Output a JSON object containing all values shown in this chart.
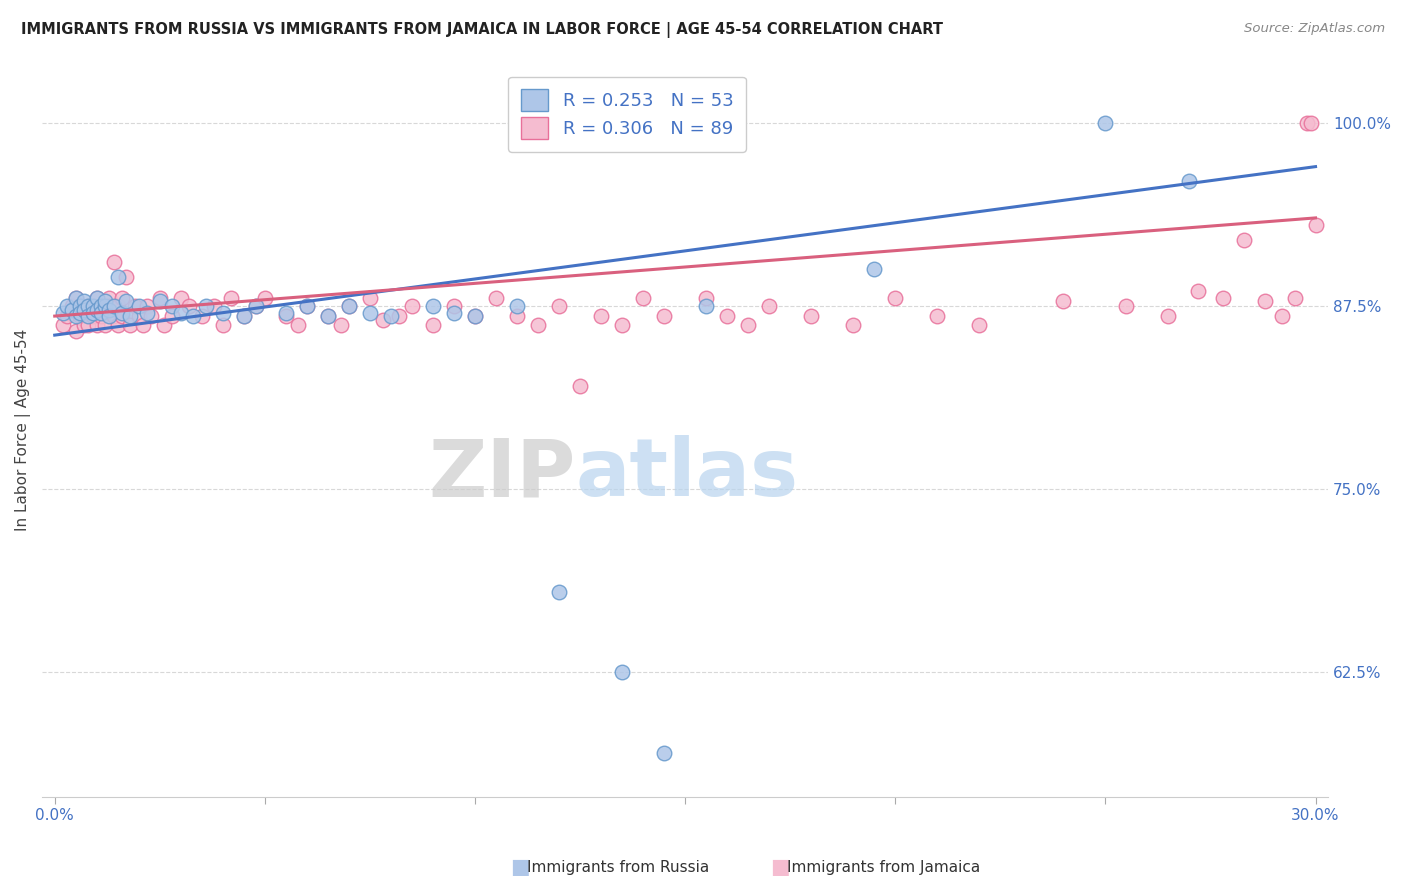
{
  "title": "IMMIGRANTS FROM RUSSIA VS IMMIGRANTS FROM JAMAICA IN LABOR FORCE | AGE 45-54 CORRELATION CHART",
  "source": "Source: ZipAtlas.com",
  "ylabel": "In Labor Force | Age 45-54",
  "russia_color": "#aec6e8",
  "russia_edge": "#6699cc",
  "jamaica_color": "#f5bcd0",
  "jamaica_edge": "#e8709a",
  "russia_R": 0.253,
  "russia_N": 53,
  "jamaica_R": 0.306,
  "jamaica_N": 89,
  "tick_color": "#4472c4",
  "grid_color": "#d8d8d8",
  "russia_line_color": "#4472c4",
  "jamaica_line_color": "#d9607e",
  "russia_x": [
    0.002,
    0.003,
    0.004,
    0.005,
    0.005,
    0.006,
    0.006,
    0.007,
    0.007,
    0.008,
    0.008,
    0.009,
    0.009,
    0.01,
    0.01,
    0.011,
    0.011,
    0.012,
    0.012,
    0.013,
    0.013,
    0.014,
    0.015,
    0.016,
    0.017,
    0.018,
    0.02,
    0.022,
    0.025,
    0.028,
    0.03,
    0.033,
    0.036,
    0.04,
    0.045,
    0.048,
    0.055,
    0.06,
    0.065,
    0.07,
    0.075,
    0.08,
    0.09,
    0.095,
    0.1,
    0.11,
    0.12,
    0.135,
    0.145,
    0.155,
    0.195,
    0.25,
    0.27
  ],
  "russia_y": [
    0.87,
    0.875,
    0.872,
    0.868,
    0.88,
    0.875,
    0.87,
    0.878,
    0.872,
    0.875,
    0.868,
    0.875,
    0.87,
    0.88,
    0.872,
    0.875,
    0.87,
    0.875,
    0.878,
    0.872,
    0.868,
    0.875,
    0.895,
    0.87,
    0.878,
    0.868,
    0.875,
    0.87,
    0.878,
    0.875,
    0.87,
    0.868,
    0.875,
    0.87,
    0.868,
    0.875,
    0.87,
    0.875,
    0.868,
    0.875,
    0.87,
    0.868,
    0.875,
    0.87,
    0.868,
    0.875,
    0.68,
    0.625,
    0.57,
    0.875,
    0.9,
    1.0,
    0.96
  ],
  "jamaica_x": [
    0.002,
    0.003,
    0.004,
    0.005,
    0.005,
    0.006,
    0.006,
    0.007,
    0.007,
    0.008,
    0.008,
    0.009,
    0.009,
    0.01,
    0.01,
    0.011,
    0.011,
    0.012,
    0.012,
    0.013,
    0.013,
    0.014,
    0.014,
    0.015,
    0.015,
    0.016,
    0.016,
    0.017,
    0.018,
    0.019,
    0.02,
    0.021,
    0.022,
    0.023,
    0.025,
    0.026,
    0.028,
    0.03,
    0.032,
    0.035,
    0.038,
    0.04,
    0.042,
    0.045,
    0.048,
    0.05,
    0.055,
    0.058,
    0.06,
    0.065,
    0.068,
    0.07,
    0.075,
    0.078,
    0.082,
    0.085,
    0.09,
    0.095,
    0.1,
    0.105,
    0.11,
    0.115,
    0.12,
    0.125,
    0.13,
    0.135,
    0.14,
    0.145,
    0.155,
    0.16,
    0.165,
    0.17,
    0.18,
    0.19,
    0.2,
    0.21,
    0.22,
    0.24,
    0.255,
    0.265,
    0.272,
    0.278,
    0.283,
    0.288,
    0.292,
    0.295,
    0.298,
    0.299,
    0.3
  ],
  "jamaica_y": [
    0.862,
    0.868,
    0.875,
    0.858,
    0.88,
    0.868,
    0.875,
    0.872,
    0.862,
    0.875,
    0.862,
    0.868,
    0.875,
    0.88,
    0.862,
    0.875,
    0.868,
    0.875,
    0.862,
    0.88,
    0.875,
    0.905,
    0.868,
    0.875,
    0.862,
    0.88,
    0.868,
    0.895,
    0.862,
    0.875,
    0.868,
    0.862,
    0.875,
    0.868,
    0.88,
    0.862,
    0.868,
    0.88,
    0.875,
    0.868,
    0.875,
    0.862,
    0.88,
    0.868,
    0.875,
    0.88,
    0.868,
    0.862,
    0.875,
    0.868,
    0.862,
    0.875,
    0.88,
    0.865,
    0.868,
    0.875,
    0.862,
    0.875,
    0.868,
    0.88,
    0.868,
    0.862,
    0.875,
    0.82,
    0.868,
    0.862,
    0.88,
    0.868,
    0.88,
    0.868,
    0.862,
    0.875,
    0.868,
    0.862,
    0.88,
    0.868,
    0.862,
    0.878,
    0.875,
    0.868,
    0.885,
    0.88,
    0.92,
    0.878,
    0.868,
    0.88,
    1.0,
    1.0,
    0.93
  ],
  "watermark_zip": "ZIP",
  "watermark_atlas": "atlas",
  "xlim": [
    -0.003,
    0.303
  ],
  "ylim": [
    0.54,
    1.04
  ],
  "yticks": [
    0.625,
    0.75,
    0.875,
    1.0
  ],
  "ytick_labels": [
    "62.5%",
    "75.0%",
    "87.5%",
    "100.0%"
  ],
  "xticks": [
    0.0,
    0.05,
    0.1,
    0.15,
    0.2,
    0.25,
    0.3
  ],
  "xtick_labels": [
    "0.0%",
    "",
    "",
    "",
    "",
    "",
    "30.0%"
  ],
  "russia_line_x0": 0.0,
  "russia_line_y0": 0.855,
  "russia_line_x1": 0.3,
  "russia_line_y1": 0.97,
  "jamaica_line_x0": 0.0,
  "jamaica_line_y0": 0.868,
  "jamaica_line_x1": 0.3,
  "jamaica_line_y1": 0.935
}
